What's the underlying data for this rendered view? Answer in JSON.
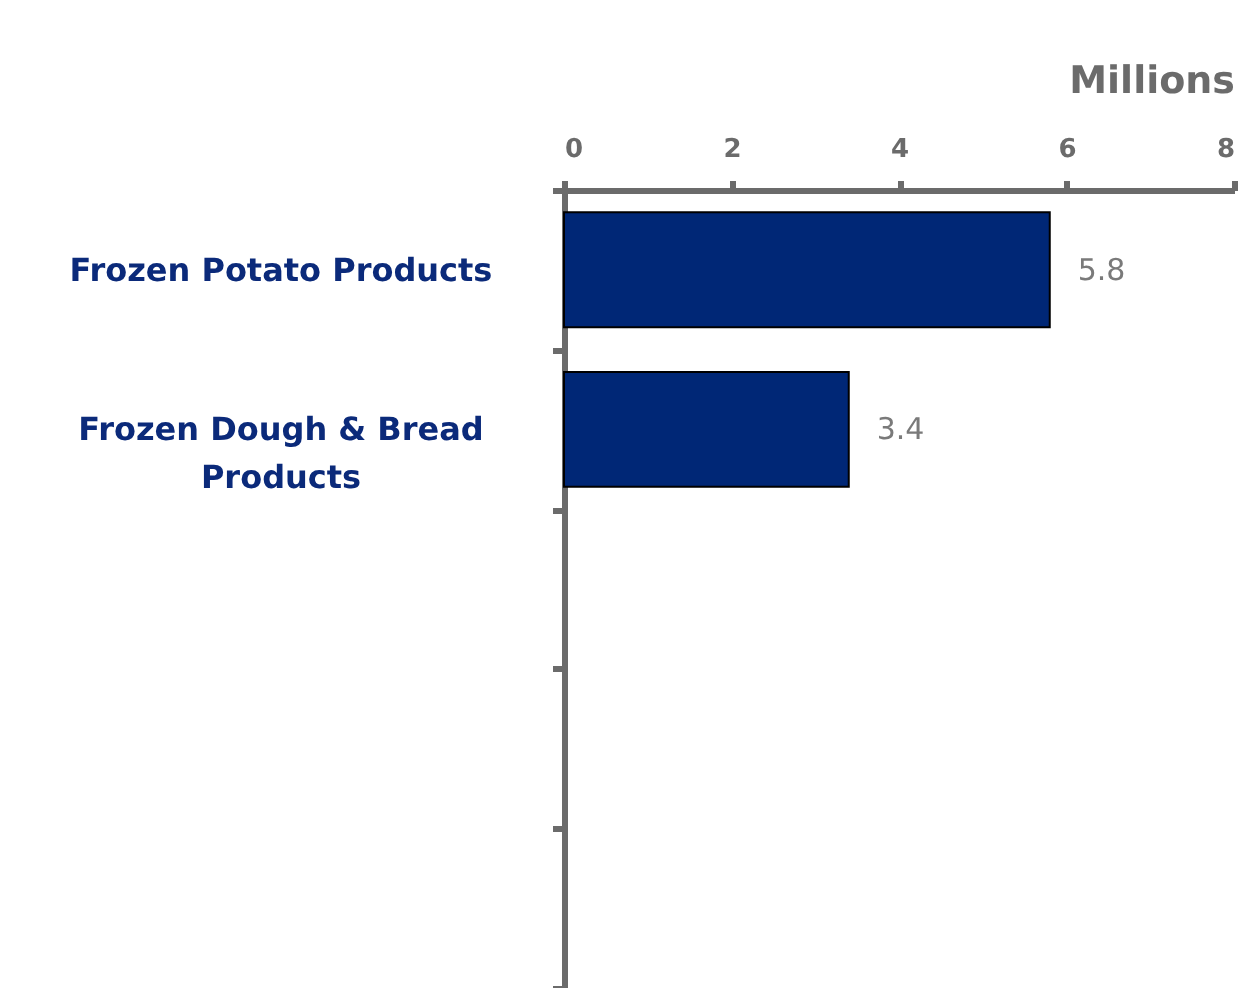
{
  "chart_data": {
    "type": "bar",
    "orientation": "horizontal",
    "xlabel": "Millions",
    "categories": [
      "Frozen Potato Products",
      "Frozen Dough & Bread Products",
      null,
      null,
      null
    ],
    "values": [
      5.8,
      3.4,
      null,
      null,
      null
    ],
    "color": "#002776",
    "xlim": [
      0,
      8
    ],
    "xticks": [
      0,
      2,
      4,
      6,
      8
    ],
    "data_labels": true
  }
}
